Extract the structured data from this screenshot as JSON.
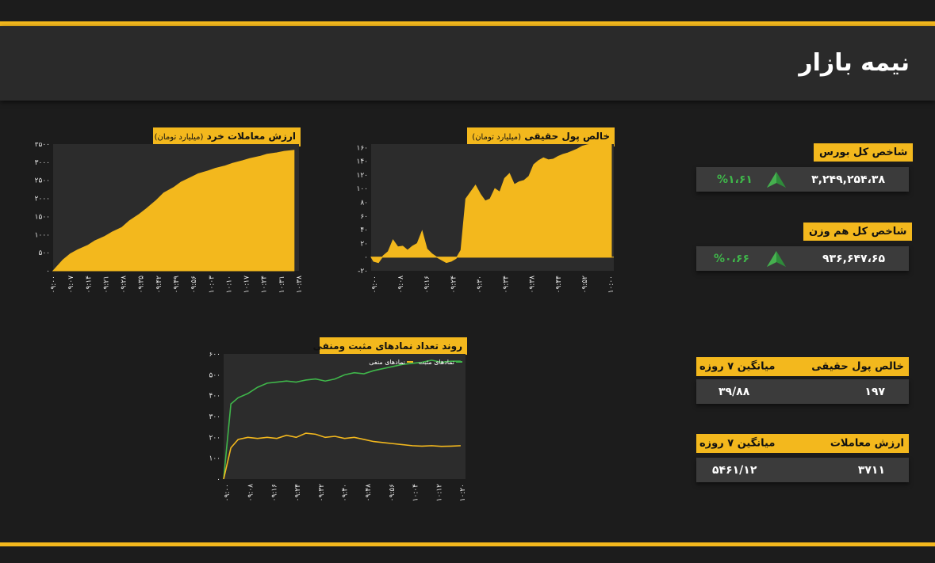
{
  "header": {
    "title": "نیمه بازار"
  },
  "colors": {
    "accent": "#f3b81d",
    "positive": "#3fb64a",
    "background": "#1c1c1c"
  },
  "index_total": {
    "label": "شاخص کل بورس",
    "value": "۳,۲۴۹,۲۵۴،۳۸",
    "change": "%۱،۶۱",
    "direction": "up"
  },
  "index_equal": {
    "label": "شاخص کل هم وزن",
    "value": "۹۳۶,۶۴۷،۶۵",
    "change": "%۰،۶۶",
    "direction": "up"
  },
  "real_money": {
    "label": "خالص پول حقیقی",
    "avg_label": "میانگین ۷ روزه",
    "value": "۱۹۷",
    "avg_value": "۳۹/۸۸"
  },
  "trade_value": {
    "label": "ارزش معاملات",
    "avg_label": "میانگین ۷ روزه",
    "value": "۳۷۱۱",
    "avg_value": "۵۴۶۱/۱۲"
  },
  "chart_data": [
    {
      "id": "retail-value",
      "type": "area",
      "title": "ارزش معاملات خرد",
      "unit": "(میلیارد تومان)",
      "x_ticks": [
        "۰۹:۰۰",
        "۰۹:۰۷",
        "۰۹:۱۴",
        "۰۹:۲۱",
        "۰۹:۲۸",
        "۰۹:۳۵",
        "۰۹:۴۲",
        "۰۹:۴۹",
        "۰۹:۵۶",
        "۱۰:۰۳",
        "۱۰:۱۰",
        "۱۰:۱۷",
        "۱۰:۲۴",
        "۱۰:۳۱",
        "۱۰:۳۸"
      ],
      "y_ticks": [
        "۰",
        "۵۰۰",
        "۱۰۰۰",
        "۱۵۰۰",
        "۲۰۰۰",
        "۲۵۰۰",
        "۳۰۰۰",
        "۳۵۰۰"
      ],
      "ylim": [
        0,
        3500
      ],
      "x": [
        0,
        4,
        7,
        10,
        14,
        17,
        21,
        24,
        28,
        31,
        35,
        38,
        42,
        45,
        49,
        52,
        56,
        59,
        63,
        66,
        70,
        73,
        77,
        80,
        84,
        87,
        91,
        94,
        98
      ],
      "values": [
        0,
        300,
        470,
        580,
        700,
        830,
        950,
        1070,
        1200,
        1380,
        1560,
        1720,
        1950,
        2150,
        2300,
        2450,
        2580,
        2680,
        2760,
        2830,
        2900,
        2970,
        3040,
        3100,
        3160,
        3220,
        3260,
        3300,
        3330
      ]
    },
    {
      "id": "real-money",
      "type": "area",
      "title": "خالص پول حقیقی",
      "unit": "(میلیارد تومان)",
      "x_ticks": [
        "۰۹:۰۰",
        "۰۹:۰۸",
        "۰۹:۱۶",
        "۰۹:۲۴",
        "۰۹:۳۰",
        "۰۹:۳۴",
        "۰۹:۳۸",
        "۰۹:۴۴",
        "۰۹:۵۲",
        "۱۰:۰۰"
      ],
      "y_ticks": [
        "-۲۰",
        "۰",
        "۲۰",
        "۴۰",
        "۶۰",
        "۸۰",
        "۱۰۰",
        "۱۲۰",
        "۱۴۰",
        "۱۶۰"
      ],
      "ylim": [
        -20,
        165
      ],
      "x": [
        0,
        1,
        3,
        5,
        7,
        9,
        11,
        13,
        15,
        17,
        19,
        21,
        23,
        25,
        27,
        29,
        31,
        33,
        35,
        37,
        39,
        41,
        43,
        45,
        47,
        49,
        51,
        53,
        55,
        57,
        59,
        61,
        63,
        65,
        67,
        69,
        71,
        73,
        75,
        77,
        79,
        81,
        83,
        85,
        87,
        89,
        91,
        93,
        95,
        97,
        99
      ],
      "values": [
        0,
        -6,
        -8,
        2,
        8,
        25,
        15,
        16,
        10,
        16,
        20,
        38,
        12,
        5,
        0,
        -4,
        -8,
        -6,
        -2,
        10,
        85,
        95,
        105,
        92,
        82,
        85,
        100,
        95,
        115,
        122,
        106,
        110,
        112,
        118,
        135,
        141,
        145,
        142,
        143,
        147,
        150,
        152,
        155,
        158,
        162,
        164,
        165,
        166,
        168,
        170,
        172
      ]
    },
    {
      "id": "symbols-trend",
      "type": "line",
      "title": "روند تعداد نمادهای مثبت ومنفی",
      "x_ticks": [
        "۰۹:۰۰",
        "۰۹:۰۸",
        "۰۹:۱۶",
        "۰۹:۲۴",
        "۰۹:۳۲",
        "۰۹:۴۰",
        "۰۹:۴۸",
        "۰۹:۵۶",
        "۱۰:۰۴",
        "۱۰:۱۲",
        "۱۰:۲۰"
      ],
      "y_ticks": [
        "۰",
        "۱۰۰",
        "۲۰۰",
        "۳۰۰",
        "۴۰۰",
        "۵۰۰",
        "۶۰۰"
      ],
      "ylim": [
        0,
        600
      ],
      "x": [
        0,
        3,
        6,
        10,
        14,
        18,
        22,
        26,
        30,
        34,
        38,
        42,
        46,
        50,
        54,
        58,
        62,
        66,
        70,
        74,
        78,
        82,
        86,
        90,
        94,
        98
      ],
      "series": [
        {
          "name": "نمادهای مثبت",
          "color": "#3fb64a",
          "values": [
            0,
            360,
            390,
            410,
            440,
            460,
            465,
            470,
            465,
            475,
            480,
            470,
            480,
            500,
            510,
            505,
            520,
            530,
            540,
            550,
            555,
            560,
            570,
            560,
            565,
            565
          ]
        },
        {
          "name": "نمادهای منفی",
          "color": "#f3b81d",
          "values": [
            0,
            150,
            190,
            200,
            195,
            200,
            195,
            210,
            200,
            220,
            215,
            200,
            205,
            195,
            200,
            190,
            180,
            175,
            170,
            165,
            160,
            158,
            160,
            157,
            158,
            160
          ]
        }
      ]
    }
  ]
}
